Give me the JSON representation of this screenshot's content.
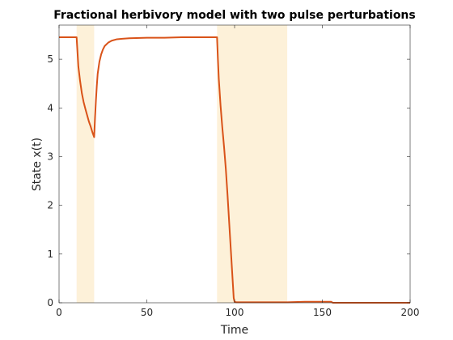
{
  "chart_data": {
    "type": "line",
    "title": "Fractional herbivory model with two pulse perturbations",
    "xlabel": "Time",
    "ylabel": "State x(t)",
    "xlim": [
      0,
      200
    ],
    "ylim": [
      0,
      5.7
    ],
    "xticks": [
      0,
      50,
      100,
      150,
      200
    ],
    "yticks": [
      0,
      1,
      2,
      3,
      4,
      5
    ],
    "grid": false,
    "colors": {
      "line": "#d95319",
      "shade": "#fdf1d9",
      "axis": "#262626"
    },
    "shaded_intervals": [
      {
        "x0": 10,
        "x1": 20
      },
      {
        "x0": 90,
        "x1": 130
      }
    ],
    "series": [
      {
        "x": [
          0,
          10,
          10.5,
          11,
          12,
          13,
          14,
          15,
          16,
          17,
          18,
          19,
          20,
          20.5,
          21,
          21.5,
          22,
          23,
          24,
          25,
          26,
          28,
          30,
          33,
          36,
          40,
          50,
          60,
          70,
          80,
          90,
          90.5,
          91,
          92,
          93,
          94,
          95,
          96,
          97,
          98,
          99,
          99.5,
          100,
          101,
          102,
          105,
          110,
          120,
          130,
          140,
          150,
          155,
          156,
          160,
          180,
          200
        ],
        "y": [
          5.45,
          5.45,
          5.15,
          4.85,
          4.55,
          4.3,
          4.12,
          3.98,
          3.85,
          3.72,
          3.62,
          3.5,
          3.4,
          3.8,
          4.15,
          4.45,
          4.7,
          4.95,
          5.1,
          5.2,
          5.27,
          5.34,
          5.38,
          5.41,
          5.42,
          5.43,
          5.44,
          5.44,
          5.45,
          5.45,
          5.45,
          5.0,
          4.6,
          4.05,
          3.6,
          3.2,
          2.75,
          2.2,
          1.6,
          1.0,
          0.4,
          0.1,
          0.02,
          0.01,
          0.01,
          0.01,
          0.01,
          0.01,
          0.01,
          0.02,
          0.02,
          0.02,
          0.0,
          0.0,
          0.0,
          0.0
        ]
      }
    ]
  }
}
